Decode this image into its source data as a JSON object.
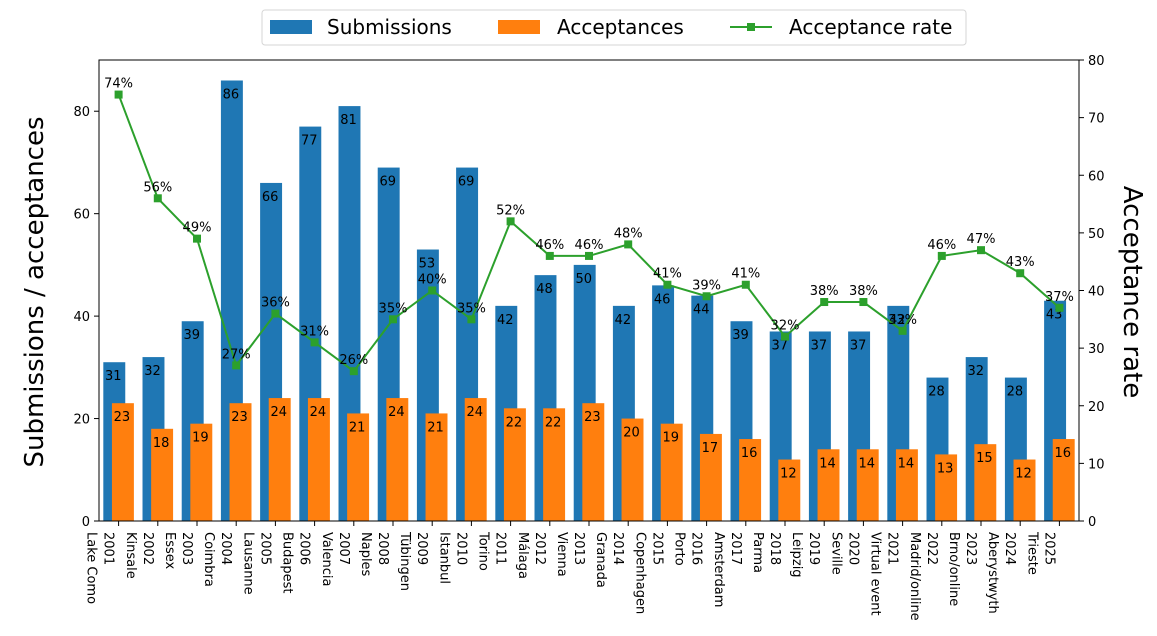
{
  "chart_data": {
    "type": "bar",
    "categories": [
      "2001\nLake Como",
      "2002\nKinsale",
      "2003\nEssex",
      "2004\nCoimbra",
      "2005\nLausanne",
      "2006\nBudapest",
      "2007\nValencia",
      "2008\nNaples",
      "2009\nTübingen",
      "2010\nIstanbul",
      "2011\nTorino",
      "2012\nMálaga",
      "2013\nVienna",
      "2014\nGranada",
      "2015\nCopenhagen",
      "2016\nPorto",
      "2017\nAmsterdam",
      "2018\nParma",
      "2019\nLeipzig",
      "2020\nSeville",
      "2021\nVirtual event",
      "2022\nMadrid/online",
      "2023\nBrno/online",
      "2024\nAberystwyth",
      "2025\nTrieste"
    ],
    "series": [
      {
        "name": "Submissions",
        "kind": "bar",
        "axis": "left",
        "color": "#1f77b4",
        "values": [
          31,
          32,
          39,
          86,
          66,
          77,
          81,
          69,
          53,
          69,
          42,
          48,
          50,
          42,
          46,
          44,
          39,
          37,
          37,
          37,
          42,
          28,
          32,
          28,
          43
        ]
      },
      {
        "name": "Acceptances",
        "kind": "bar",
        "axis": "left",
        "color": "#ff7f0e",
        "values": [
          23,
          18,
          19,
          23,
          24,
          24,
          21,
          24,
          21,
          24,
          22,
          22,
          23,
          20,
          19,
          17,
          16,
          12,
          14,
          14,
          14,
          13,
          15,
          12,
          16
        ]
      },
      {
        "name": "Acceptance rate",
        "kind": "line",
        "axis": "right",
        "color": "#2ca02c",
        "values": [
          74,
          56,
          49,
          27,
          36,
          31,
          26,
          35,
          40,
          35,
          52,
          46,
          46,
          48,
          41,
          39,
          41,
          32,
          38,
          38,
          33,
          46,
          47,
          43,
          37
        ],
        "labels": [
          "74%",
          "56%",
          "49%",
          "27%",
          "36%",
          "31%",
          "26%",
          "35%",
          "40%",
          "35%",
          "52%",
          "46%",
          "46%",
          "48%",
          "41%",
          "39%",
          "41%",
          "32%",
          "38%",
          "38%",
          "33%",
          "46%",
          "47%",
          "43%",
          "37%"
        ]
      }
    ],
    "ylabel": "Submissions / acceptances",
    "ylabel_right": "Acceptance rate",
    "ylim": [
      0,
      90
    ],
    "ylim_right": [
      0,
      80
    ],
    "yticks": [
      0,
      20,
      40,
      60,
      80
    ],
    "yticks_right": [
      0,
      10,
      20,
      30,
      40,
      50,
      60,
      70,
      80
    ],
    "grid": false,
    "legend_position": "top-center"
  }
}
